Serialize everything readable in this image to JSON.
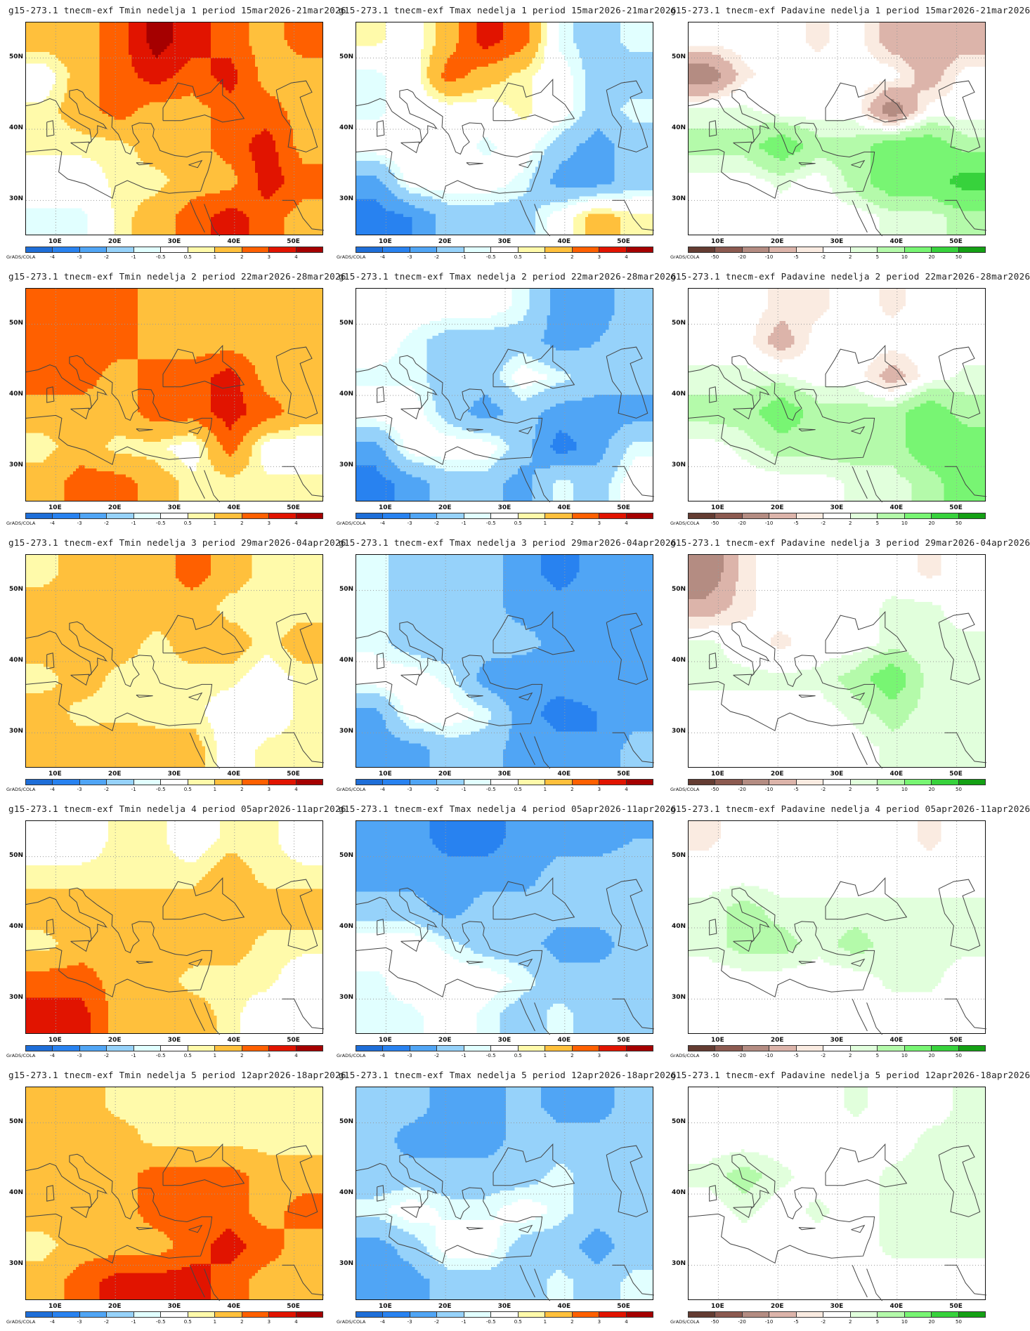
{
  "common": {
    "lon_labels": [
      "10E",
      "20E",
      "30E",
      "40E",
      "50E"
    ],
    "lat_labels": [
      "50N",
      "40N",
      "30N"
    ],
    "credit": "GrADS/COLA"
  },
  "legends": {
    "temp": {
      "labels": [
        "-4",
        "-3",
        "-2",
        "-1",
        "-0.5",
        "0.5",
        "1",
        "2",
        "3",
        "4"
      ],
      "bounds": [
        -4,
        -3,
        -2,
        -1,
        -0.5,
        0.5,
        1,
        2,
        3,
        4
      ],
      "colors": [
        "#1e6ed8",
        "#2882f0",
        "#50a5f5",
        "#96d2fa",
        "#e1ffff",
        "#ffffff",
        "#fffaaa",
        "#ffc03c",
        "#ff6000",
        "#e11400",
        "#a50000"
      ]
    },
    "precip": {
      "labels": [
        "-50",
        "-20",
        "-10",
        "-5",
        "-2",
        "2",
        "5",
        "10",
        "20",
        "50"
      ],
      "bounds": [
        -50,
        -20,
        -10,
        -5,
        -2,
        2,
        5,
        10,
        20,
        50
      ],
      "colors": [
        "#643c32",
        "#8c5a50",
        "#b48c82",
        "#dcb4aa",
        "#faebe1",
        "#ffffff",
        "#e1ffdc",
        "#b4faaa",
        "#78f573",
        "#37d23c",
        "#14a014"
      ]
    }
  },
  "chart_data": [
    {
      "type": "heatmap",
      "title": "g15-273.1 tnecm-exf Tmin nedelja 1 period 15mar2026-21mar2026",
      "legend": "temp",
      "lon_range": [
        5,
        55
      ],
      "lat_range": [
        25,
        55
      ],
      "field": [
        [
          1.5,
          1.5,
          2.5,
          4.5,
          3.5,
          2.5,
          1.5,
          2.5
        ],
        [
          0,
          1.5,
          2.5,
          3.5,
          2.5,
          3.5,
          1.5,
          1.5
        ],
        [
          0.7,
          1.5,
          2.5,
          1.5,
          1.5,
          2.5,
          2.5,
          1.5
        ],
        [
          0.7,
          0.7,
          0.7,
          1.5,
          1.5,
          2.5,
          3.5,
          1.5
        ],
        [
          0,
          0,
          0.7,
          0.7,
          1.5,
          1.5,
          3.5,
          2.5
        ],
        [
          -0.7,
          -0.7,
          0.7,
          1.5,
          2.5,
          3.5,
          2.5,
          1.5
        ]
      ]
    },
    {
      "type": "heatmap",
      "title": "g15-273.1 tnecm-exf Tmax nedelja 1 period 15mar2026-21mar2026",
      "legend": "temp",
      "lon_range": [
        5,
        55
      ],
      "lat_range": [
        25,
        55
      ],
      "field": [
        [
          0.7,
          0,
          1.5,
          3.5,
          2.5,
          -0.7,
          -1.5,
          -0.7
        ],
        [
          -0.7,
          0,
          2.5,
          1.5,
          0.7,
          0,
          -1.5,
          -1.5
        ],
        [
          -0.7,
          0,
          0,
          0,
          0.7,
          0,
          -1.5,
          -0.7
        ],
        [
          0,
          0,
          0,
          -0.7,
          0,
          -1.5,
          -2.5,
          -1.5
        ],
        [
          -2.5,
          0,
          0,
          0,
          -0.7,
          -2.5,
          -2.5,
          -1.5
        ],
        [
          -3.5,
          -3,
          -1.5,
          -1.5,
          -1.5,
          0,
          1.5,
          0.7
        ]
      ]
    },
    {
      "type": "heatmap",
      "title": "g15-273.1 tnecm-exf Padavine nedelja 1 period 15mar2026-21mar2026",
      "legend": "precip",
      "lon_range": [
        5,
        55
      ],
      "lat_range": [
        25,
        55
      ],
      "field": [
        [
          0,
          0,
          0,
          -3,
          0,
          -8,
          -8,
          -8
        ],
        [
          -15,
          -3,
          0,
          0,
          0,
          0,
          -8,
          0
        ],
        [
          3,
          3,
          0,
          0,
          0,
          -15,
          0,
          0
        ],
        [
          7,
          7,
          15,
          7,
          7,
          15,
          15,
          7
        ],
        [
          0,
          0,
          3,
          0,
          7,
          15,
          15,
          25
        ],
        [
          0,
          0,
          0,
          0,
          0,
          3,
          3,
          7
        ]
      ]
    },
    {
      "type": "heatmap",
      "title": "g15-273.1 tnecm-exf Tmin nedelja 2 period 22mar2026-28mar2026",
      "legend": "temp",
      "lon_range": [
        5,
        55
      ],
      "lat_range": [
        25,
        55
      ],
      "field": [
        [
          2.5,
          2.5,
          2.5,
          1.5,
          1.5,
          1.5,
          1.5,
          1.5
        ],
        [
          2.5,
          2.5,
          2.5,
          1.5,
          1.5,
          1.5,
          1.5,
          1.5
        ],
        [
          2.5,
          2.5,
          1.5,
          2.5,
          2.5,
          3.5,
          1.5,
          1.5
        ],
        [
          1.5,
          1.5,
          1.5,
          2.5,
          2.5,
          3.5,
          2.5,
          1.5
        ],
        [
          0.7,
          1.5,
          0.7,
          0.7,
          0,
          2.5,
          0,
          0
        ],
        [
          1.5,
          2.5,
          2.5,
          1.5,
          0.7,
          0.7,
          0.7,
          0.7
        ]
      ]
    },
    {
      "type": "heatmap",
      "title": "g15-273.1 tnecm-exf Tmax nedelja 2 period 22mar2026-28mar2026",
      "legend": "temp",
      "lon_range": [
        5,
        55
      ],
      "lat_range": [
        25,
        55
      ],
      "field": [
        [
          0,
          0,
          0,
          0,
          -0.7,
          -2.5,
          -2.5,
          -1.5
        ],
        [
          0,
          -0.7,
          -1.5,
          -1.5,
          -1.5,
          -2.5,
          -2,
          -1.5
        ],
        [
          -0.7,
          -0.7,
          -1.5,
          -1.5,
          0,
          -0.7,
          -1.5,
          -1.5
        ],
        [
          0,
          0,
          -1.5,
          -2.5,
          -1.5,
          -2.5,
          -2.5,
          -2.5
        ],
        [
          -2.5,
          0,
          0,
          0,
          -1.5,
          -3.5,
          -2.5,
          -0.7
        ],
        [
          -3.5,
          -2.5,
          -1.5,
          -1.5,
          -2.5,
          -0.7,
          -1.5,
          0
        ]
      ]
    },
    {
      "type": "heatmap",
      "title": "g15-273.1 tnecm-exf Padavine nedelja 2 period 22mar2026-28mar2026",
      "legend": "precip",
      "lon_range": [
        5,
        55
      ],
      "lat_range": [
        25,
        55
      ],
      "field": [
        [
          0,
          0,
          -3,
          -3,
          0,
          -3,
          0,
          0
        ],
        [
          0,
          0,
          -8,
          0,
          0,
          0,
          0,
          0
        ],
        [
          3,
          3,
          3,
          0,
          0,
          -8,
          0,
          3
        ],
        [
          7,
          7,
          15,
          7,
          7,
          7,
          15,
          7
        ],
        [
          0,
          3,
          7,
          7,
          7,
          7,
          15,
          15
        ],
        [
          0,
          0,
          0,
          0,
          3,
          3,
          7,
          15
        ]
      ]
    },
    {
      "type": "heatmap",
      "title": "g15-273.1 tnecm-exf Tmin nedelja 3 period 29mar2026-04apr2026",
      "legend": "temp",
      "lon_range": [
        5,
        55
      ],
      "lat_range": [
        25,
        55
      ],
      "field": [
        [
          0.7,
          1.5,
          1.5,
          1.5,
          2.5,
          1.5,
          0.7,
          0.7
        ],
        [
          1.5,
          1.5,
          1.5,
          1.5,
          1.5,
          0.7,
          0.7,
          0.7
        ],
        [
          1.5,
          1.5,
          1.5,
          0.7,
          1.5,
          1.5,
          0.7,
          1.5
        ],
        [
          0.7,
          1.5,
          0.7,
          0.7,
          0.7,
          0.7,
          0,
          0.7
        ],
        [
          1.5,
          0.7,
          0.7,
          0.7,
          0.7,
          0,
          0,
          0.7
        ],
        [
          1.5,
          1.5,
          2,
          1.5,
          1.5,
          0,
          0.7,
          0.7
        ]
      ]
    },
    {
      "type": "heatmap",
      "title": "g15-273.1 tnecm-exf Tmax nedelja 3 period 29mar2026-04apr2026",
      "legend": "temp",
      "lon_range": [
        5,
        55
      ],
      "lat_range": [
        25,
        55
      ],
      "field": [
        [
          -0.7,
          -1.5,
          -1.5,
          -1.5,
          -2.5,
          -3.5,
          -2.5,
          -2.5
        ],
        [
          -0.7,
          -1.5,
          -1.5,
          -1.5,
          -2.5,
          -2.5,
          -2.5,
          -2.5
        ],
        [
          -0.7,
          -1.5,
          -1.5,
          -1.5,
          -1.5,
          -2.5,
          -2.5,
          -2.5
        ],
        [
          0,
          0,
          -0.7,
          -2.5,
          -3,
          -2.5,
          -2.5,
          -2.5
        ],
        [
          -2.5,
          0,
          0,
          -0.7,
          -2.5,
          -3.5,
          -3,
          -2.5
        ],
        [
          -2.5,
          -2.5,
          -1.5,
          -1.5,
          -2.5,
          -2.5,
          -3,
          -1.5
        ]
      ]
    },
    {
      "type": "heatmap",
      "title": "g15-273.1 tnecm-exf Padavine nedelja 3 period 29mar2026-04apr2026",
      "legend": "precip",
      "lon_range": [
        5,
        55
      ],
      "lat_range": [
        25,
        55
      ],
      "field": [
        [
          -15,
          -3,
          0,
          0,
          0,
          0,
          -3,
          0
        ],
        [
          -8,
          -3,
          0,
          0,
          0,
          3,
          3,
          0
        ],
        [
          3,
          0,
          -3,
          0,
          0,
          3,
          3,
          3
        ],
        [
          3,
          3,
          3,
          3,
          7,
          15,
          3,
          3
        ],
        [
          0,
          0,
          0,
          0,
          3,
          7,
          3,
          3
        ],
        [
          0,
          0,
          0,
          0,
          0,
          3,
          3,
          3
        ]
      ]
    },
    {
      "type": "heatmap",
      "title": "g15-273.1 tnecm-exf Tmin nedelja 4 period 05apr2026-11apr2026",
      "legend": "temp",
      "lon_range": [
        5,
        55
      ],
      "lat_range": [
        25,
        55
      ],
      "field": [
        [
          0,
          0,
          0.7,
          0.7,
          0,
          0.7,
          0.7,
          0
        ],
        [
          0.7,
          0.7,
          0.7,
          0.7,
          0.7,
          1.5,
          0.7,
          0.7
        ],
        [
          1.5,
          1.5,
          1.5,
          1.5,
          1.5,
          1.5,
          1.5,
          1.5
        ],
        [
          0.7,
          1.5,
          1.5,
          1.5,
          1.5,
          1.5,
          0.7,
          0.7
        ],
        [
          2.5,
          2.5,
          1.5,
          1.5,
          0.7,
          0.7,
          0.7,
          0
        ],
        [
          3.5,
          3.5,
          1.5,
          1.5,
          1.5,
          0.7,
          0,
          0
        ]
      ]
    },
    {
      "type": "heatmap",
      "title": "g15-273.1 tnecm-exf Tmax nedelja 4 period 05apr2026-11apr2026",
      "legend": "temp",
      "lon_range": [
        5,
        55
      ],
      "lat_range": [
        25,
        55
      ],
      "field": [
        [
          -2.5,
          -2.5,
          -3.5,
          -3.5,
          -2.5,
          -2.5,
          -2.5,
          -2
        ],
        [
          -2.5,
          -2.5,
          -2.5,
          -2.5,
          -2.5,
          -1.5,
          -1.5,
          -1.5
        ],
        [
          -1.5,
          -1.5,
          -2.5,
          -1.5,
          -1.5,
          -1.5,
          -1.5,
          -1.5
        ],
        [
          0,
          0,
          -0.7,
          -1.5,
          -1.5,
          -2.5,
          -2.5,
          -1.5
        ],
        [
          -0.7,
          0,
          0,
          0,
          -0.7,
          -1.5,
          -1.5,
          -1.5
        ],
        [
          -0.7,
          -0.7,
          0,
          -0.7,
          -1.5,
          -0.7,
          -1.5,
          -1.5
        ]
      ]
    },
    {
      "type": "heatmap",
      "title": "g15-273.1 tnecm-exf Padavine nedelja 4 period 05apr2026-11apr2026",
      "legend": "precip",
      "lon_range": [
        5,
        55
      ],
      "lat_range": [
        25,
        55
      ],
      "field": [
        [
          -3,
          0,
          0,
          0,
          0,
          0,
          -3,
          0
        ],
        [
          0,
          0,
          0,
          0,
          0,
          0,
          0,
          0
        ],
        [
          3,
          7,
          3,
          3,
          3,
          3,
          3,
          3
        ],
        [
          3,
          7,
          7,
          3,
          7,
          3,
          3,
          3
        ],
        [
          0,
          0,
          0,
          0,
          0,
          3,
          3,
          0
        ],
        [
          0,
          0,
          0,
          0,
          0,
          0,
          0,
          0
        ]
      ]
    },
    {
      "type": "heatmap",
      "title": "g15-273.1 tnecm-exf Tmin nedelja 5 period 12apr2026-18apr2026",
      "legend": "temp",
      "lon_range": [
        5,
        55
      ],
      "lat_range": [
        25,
        55
      ],
      "field": [
        [
          1.5,
          1.5,
          0.7,
          0.7,
          0.7,
          0.7,
          0.7,
          0.7
        ],
        [
          1.5,
          1.5,
          1.5,
          0.7,
          0.7,
          0.7,
          0.7,
          0.7
        ],
        [
          1.5,
          1.5,
          1.5,
          2.5,
          2.5,
          2.5,
          1.5,
          1.5
        ],
        [
          1.5,
          1.5,
          1.5,
          2.5,
          2.5,
          2.5,
          1.5,
          2.5
        ],
        [
          0.7,
          1.5,
          1.5,
          1.5,
          2.5,
          3.5,
          2.5,
          1.5
        ],
        [
          1.5,
          2.5,
          3.5,
          3.5,
          3.5,
          2.5,
          1.5,
          1.5
        ]
      ]
    },
    {
      "type": "heatmap",
      "title": "g15-273.1 tnecm-exf Tmax nedelja 5 period 12apr2026-18apr2026",
      "legend": "temp",
      "lon_range": [
        5,
        55
      ],
      "lat_range": [
        25,
        55
      ],
      "field": [
        [
          -1.5,
          -1.5,
          -2.5,
          -2.5,
          -1.5,
          -2.5,
          -2.5,
          -1.5
        ],
        [
          -1.5,
          -2.5,
          -2.5,
          -2.5,
          -1.5,
          -1.5,
          -1.5,
          -1.5
        ],
        [
          -1.5,
          -1.5,
          -1.5,
          -1.5,
          -1.5,
          -0.7,
          -1.5,
          -1.5
        ],
        [
          -0.7,
          0,
          -0.7,
          -0.7,
          0,
          -0.7,
          -1.5,
          -1.5
        ],
        [
          -2.5,
          -1.5,
          0,
          0,
          -1.5,
          -1.5,
          -2.5,
          -1.5
        ],
        [
          -2.5,
          -2.5,
          -1.5,
          -1.5,
          -1.5,
          -0.7,
          -1.5,
          -0.7
        ]
      ]
    },
    {
      "type": "heatmap",
      "title": "g15-273.1 tnecm-exf Padavine nedelja 5 period 12apr2026-18apr2026",
      "legend": "precip",
      "lon_range": [
        5,
        55
      ],
      "lat_range": [
        25,
        55
      ],
      "field": [
        [
          0,
          0,
          0,
          0,
          3,
          0,
          0,
          3
        ],
        [
          0,
          0,
          0,
          0,
          0,
          0,
          3,
          3
        ],
        [
          3,
          7,
          3,
          0,
          0,
          3,
          3,
          3
        ],
        [
          0,
          3,
          0,
          3,
          0,
          3,
          3,
          3
        ],
        [
          0,
          0,
          0,
          0,
          0,
          3,
          3,
          3
        ],
        [
          0,
          0,
          0,
          0,
          0,
          0,
          0,
          0
        ]
      ]
    }
  ]
}
